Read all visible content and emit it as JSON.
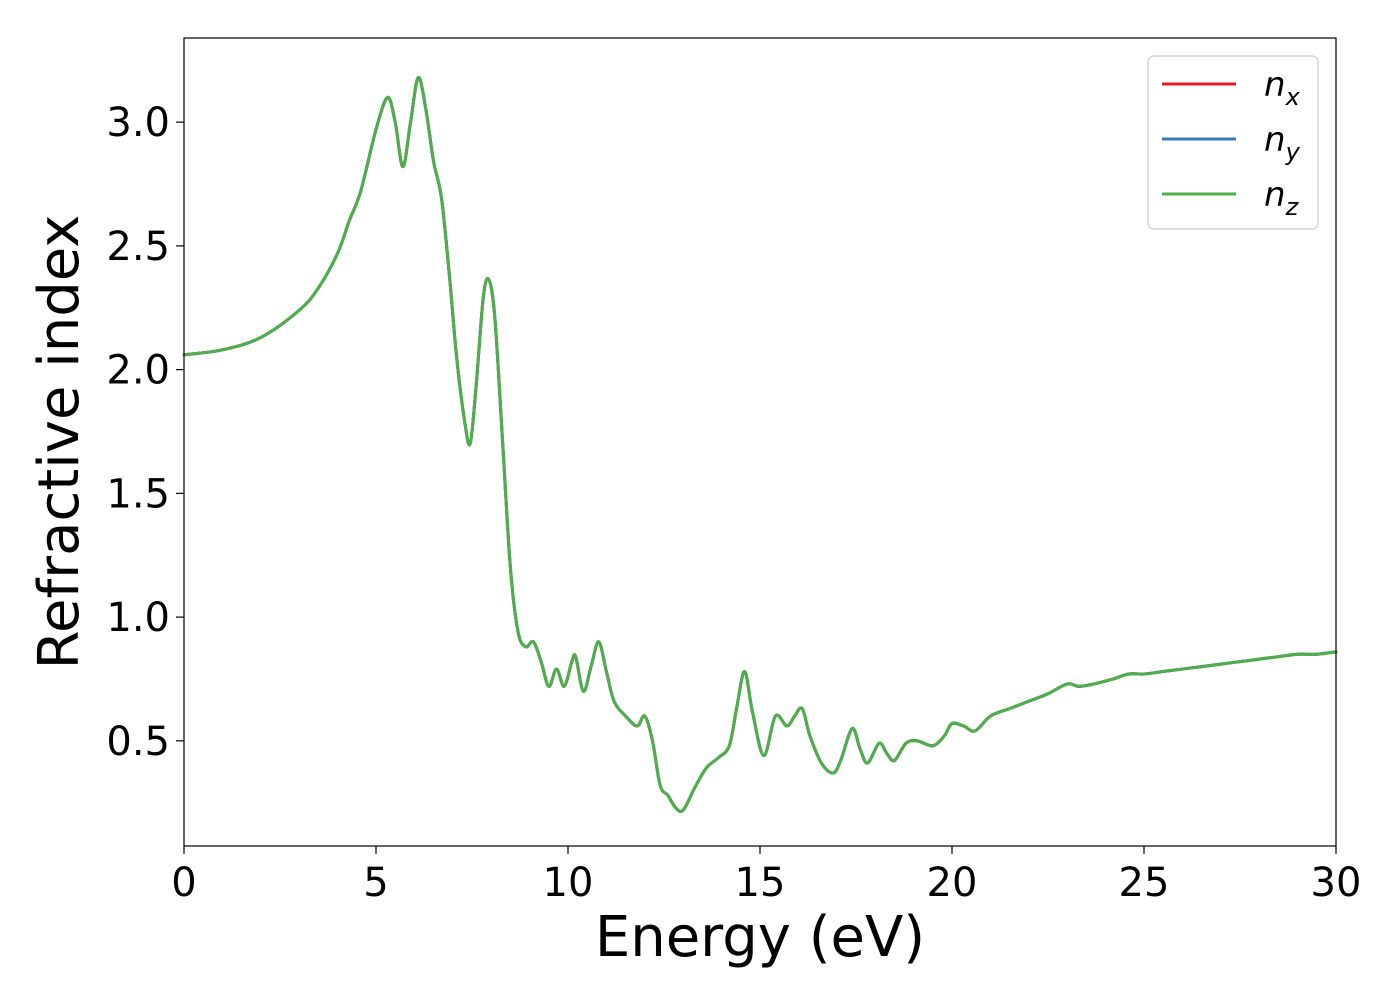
{
  "chart_data": {
    "type": "line",
    "title": "",
    "xlabel": "Energy (eV)",
    "ylabel": "Refractive index",
    "xlim": [
      0,
      30
    ],
    "ylim": [
      0.075,
      3.34
    ],
    "xticks": [
      0,
      5,
      10,
      15,
      20,
      25,
      30
    ],
    "xtick_labels": [
      "0",
      "5",
      "10",
      "15",
      "20",
      "25",
      "30"
    ],
    "yticks": [
      0.5,
      1.0,
      1.5,
      2.0,
      2.5,
      3.0
    ],
    "ytick_labels": [
      "0.5",
      "1.0",
      "1.5",
      "2.0",
      "2.5",
      "3.0"
    ],
    "grid": false,
    "legend_position": "top-right",
    "series": [
      {
        "name": "n",
        "subscript": "x",
        "color": "#e41a1c"
      },
      {
        "name": "n",
        "subscript": "y",
        "color": "#377eb8"
      },
      {
        "name": "n",
        "subscript": "z",
        "color": "#4daf4a"
      }
    ],
    "curve": {
      "x": [
        0,
        1,
        2,
        3,
        3.5,
        4,
        4.3,
        4.6,
        5,
        5.3,
        5.5,
        5.7,
        5.9,
        6.1,
        6.3,
        6.5,
        6.7,
        6.9,
        7.1,
        7.3,
        7.45,
        7.6,
        7.8,
        7.95,
        8.1,
        8.3,
        8.5,
        8.7,
        8.9,
        9.1,
        9.3,
        9.5,
        9.7,
        9.9,
        10.1,
        10.2,
        10.4,
        10.6,
        10.8,
        11.0,
        11.2,
        11.5,
        11.8,
        12.0,
        12.2,
        12.4,
        12.6,
        12.8,
        13.0,
        13.3,
        13.6,
        13.9,
        14.2,
        14.4,
        14.6,
        14.8,
        15.1,
        15.4,
        15.7,
        15.9,
        16.1,
        16.3,
        16.6,
        16.9,
        17.1,
        17.4,
        17.6,
        17.8,
        18.1,
        18.3,
        18.5,
        18.8,
        19.1,
        19.5,
        19.8,
        20.0,
        20.3,
        20.6,
        21.0,
        21.5,
        22.0,
        22.5,
        23.0,
        23.3,
        23.7,
        24.2,
        24.6,
        25.0,
        25.5,
        26.0,
        26.5,
        27.0,
        27.5,
        28.0,
        28.5,
        29.0,
        29.5,
        30.0
      ],
      "y": [
        2.06,
        2.08,
        2.13,
        2.24,
        2.33,
        2.47,
        2.6,
        2.72,
        2.97,
        3.1,
        3.0,
        2.82,
        3.0,
        3.18,
        3.05,
        2.84,
        2.7,
        2.4,
        2.05,
        1.8,
        1.7,
        1.92,
        2.3,
        2.36,
        2.2,
        1.7,
        1.2,
        0.94,
        0.88,
        0.9,
        0.82,
        0.72,
        0.79,
        0.72,
        0.82,
        0.84,
        0.7,
        0.8,
        0.9,
        0.78,
        0.66,
        0.6,
        0.56,
        0.6,
        0.5,
        0.32,
        0.28,
        0.23,
        0.22,
        0.31,
        0.39,
        0.43,
        0.48,
        0.64,
        0.78,
        0.62,
        0.44,
        0.6,
        0.56,
        0.6,
        0.63,
        0.52,
        0.41,
        0.37,
        0.42,
        0.55,
        0.47,
        0.41,
        0.49,
        0.45,
        0.42,
        0.49,
        0.5,
        0.48,
        0.52,
        0.57,
        0.56,
        0.54,
        0.6,
        0.63,
        0.66,
        0.69,
        0.73,
        0.72,
        0.73,
        0.75,
        0.77,
        0.77,
        0.78,
        0.79,
        0.8,
        0.81,
        0.82,
        0.83,
        0.84,
        0.85,
        0.85,
        0.86
      ]
    }
  }
}
